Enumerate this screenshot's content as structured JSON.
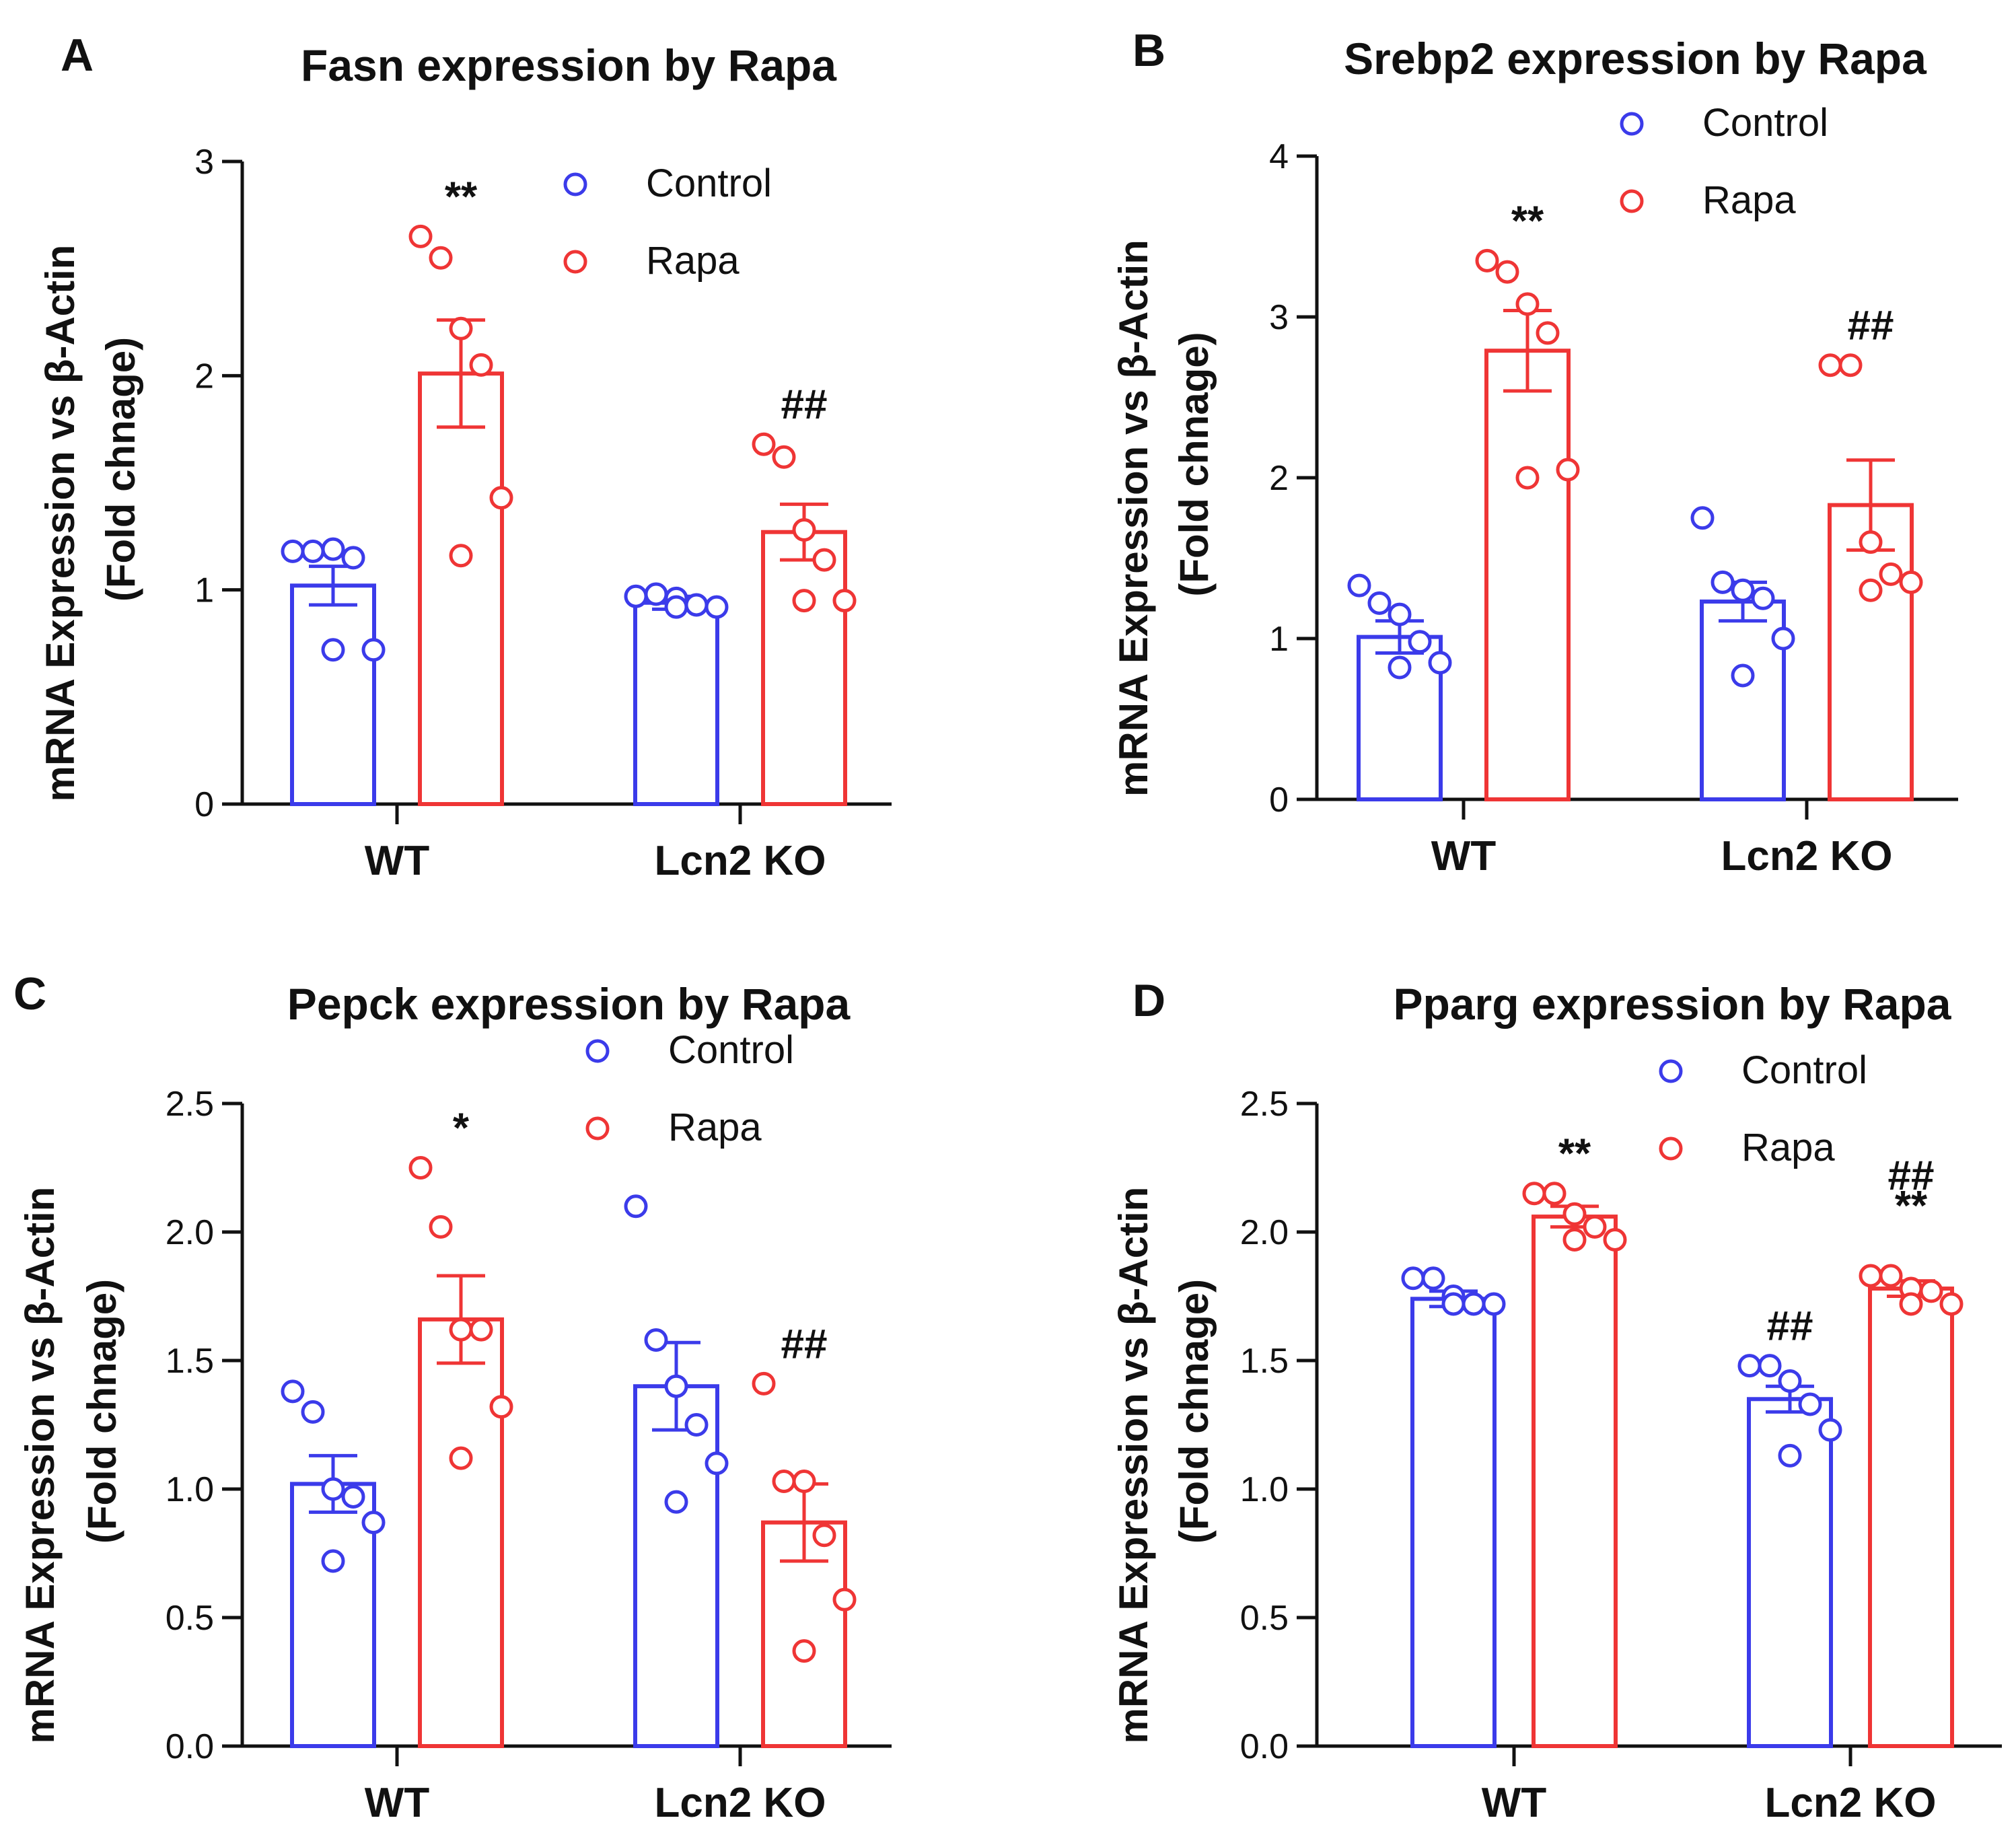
{
  "colors": {
    "control": "#3b3bea",
    "rapa": "#ef3535",
    "axis": "#111111"
  },
  "chart_data": [
    {
      "panel": "A",
      "type": "bar",
      "title": "Fasn expression by Rapa",
      "ylabel": "mRNA Expression vs β-Actin",
      "ylabel2": "(Fold chnage)",
      "categories": [
        "WT",
        "Lcn2 KO"
      ],
      "ylim": [
        0,
        3
      ],
      "yticks": [
        "0",
        "1",
        "2",
        "3"
      ],
      "legend": [
        "Control",
        "Rapa"
      ],
      "series": [
        {
          "name": "Control",
          "values": [
            1.02,
            0.94
          ],
          "errors": [
            0.09,
            0.03
          ],
          "points": [
            [
              1.18,
              1.18,
              1.19,
              1.15,
              0.72,
              0.72
            ],
            [
              0.97,
              0.98,
              0.96,
              0.93,
              0.92,
              0.92
            ]
          ]
        },
        {
          "name": "Rapa",
          "values": [
            2.01,
            1.27
          ],
          "errors": [
            0.25,
            0.13
          ],
          "points": [
            [
              2.65,
              2.55,
              2.22,
              2.05,
              1.43,
              1.16
            ],
            [
              1.68,
              1.62,
              1.28,
              1.14,
              0.95,
              0.95
            ]
          ]
        }
      ],
      "annotations": [
        {
          "text": "**",
          "series": 1,
          "category": 0
        },
        {
          "text": "##",
          "series": 1,
          "category": 1
        }
      ]
    },
    {
      "panel": "B",
      "type": "bar",
      "title": "Srebp2 expression by Rapa",
      "ylabel": "mRNA Expression vs β-Actin",
      "ylabel2": "(Fold chnage)",
      "categories": [
        "WT",
        "Lcn2 KO"
      ],
      "ylim": [
        0,
        4
      ],
      "yticks": [
        "0",
        "1",
        "2",
        "3",
        "4"
      ],
      "legend": [
        "Control",
        "Rapa"
      ],
      "series": [
        {
          "name": "Control",
          "values": [
            1.01,
            1.23
          ],
          "errors": [
            0.1,
            0.12
          ],
          "points": [
            [
              1.33,
              1.22,
              1.15,
              0.98,
              0.85,
              0.82
            ],
            [
              1.75,
              1.35,
              1.3,
              1.25,
              1.0,
              0.77
            ]
          ]
        },
        {
          "name": "Rapa",
          "values": [
            2.79,
            1.83
          ],
          "errors": [
            0.25,
            0.28
          ],
          "points": [
            [
              3.35,
              3.28,
              3.08,
              2.9,
              2.05,
              2.0
            ],
            [
              2.7,
              2.7,
              1.6,
              1.4,
              1.35,
              1.3
            ]
          ]
        }
      ],
      "annotations": [
        {
          "text": "**",
          "series": 1,
          "category": 0
        },
        {
          "text": "##",
          "series": 1,
          "category": 1
        }
      ]
    },
    {
      "panel": "C",
      "type": "bar",
      "title": "Pepck expression by Rapa",
      "ylabel": "mRNA Expression vs β-Actin",
      "ylabel2": "(Fold chnage)",
      "categories": [
        "WT",
        "Lcn2 KO"
      ],
      "ylim": [
        0,
        2.5
      ],
      "yticks": [
        "0.0",
        "0.5",
        "1.0",
        "1.5",
        "2.0",
        "2.5"
      ],
      "legend": [
        "Control",
        "Rapa"
      ],
      "series": [
        {
          "name": "Control",
          "values": [
            1.02,
            1.4
          ],
          "errors": [
            0.11,
            0.17
          ],
          "points": [
            [
              1.38,
              1.3,
              1.0,
              0.97,
              0.87,
              0.72
            ],
            [
              2.1,
              1.58,
              1.4,
              1.25,
              1.1,
              0.95
            ]
          ]
        },
        {
          "name": "Rapa",
          "values": [
            1.66,
            0.87
          ],
          "errors": [
            0.17,
            0.15
          ],
          "points": [
            [
              2.25,
              2.02,
              1.62,
              1.62,
              1.32,
              1.12
            ],
            [
              1.41,
              1.03,
              1.03,
              0.82,
              0.57,
              0.37
            ]
          ]
        }
      ],
      "annotations": [
        {
          "text": "*",
          "series": 1,
          "category": 0
        },
        {
          "text": "##",
          "series": 1,
          "category": 1
        }
      ]
    },
    {
      "panel": "D",
      "type": "bar",
      "title": "Pparg expression by Rapa",
      "ylabel": "mRNA Expression vs β-Actin",
      "ylabel2": "(Fold chnage)",
      "categories": [
        "WT",
        "Lcn2 KO"
      ],
      "ylim": [
        0,
        2.5
      ],
      "yticks": [
        "0.0",
        "0.5",
        "1.0",
        "1.5",
        "2.0",
        "2.5"
      ],
      "legend": [
        "Control",
        "Rapa"
      ],
      "series": [
        {
          "name": "Control",
          "values": [
            1.74,
            1.35
          ],
          "errors": [
            0.03,
            0.05
          ],
          "points": [
            [
              1.82,
              1.82,
              1.75,
              1.72,
              1.72,
              1.72
            ],
            [
              1.48,
              1.48,
              1.42,
              1.33,
              1.23,
              1.13
            ]
          ]
        },
        {
          "name": "Rapa",
          "values": [
            2.06,
            1.78
          ],
          "errors": [
            0.04,
            0.03
          ],
          "points": [
            [
              2.15,
              2.15,
              2.07,
              2.02,
              1.97,
              1.97
            ],
            [
              1.83,
              1.83,
              1.78,
              1.77,
              1.72,
              1.72
            ]
          ]
        }
      ],
      "annotations": [
        {
          "text": "**",
          "series": 1,
          "category": 0
        },
        {
          "text": "##",
          "series": 0,
          "category": 1
        },
        {
          "text": "##",
          "series": 1,
          "category": 1,
          "stack": 2
        },
        {
          "text": "**",
          "series": 1,
          "category": 1,
          "stack": 1
        }
      ]
    }
  ]
}
